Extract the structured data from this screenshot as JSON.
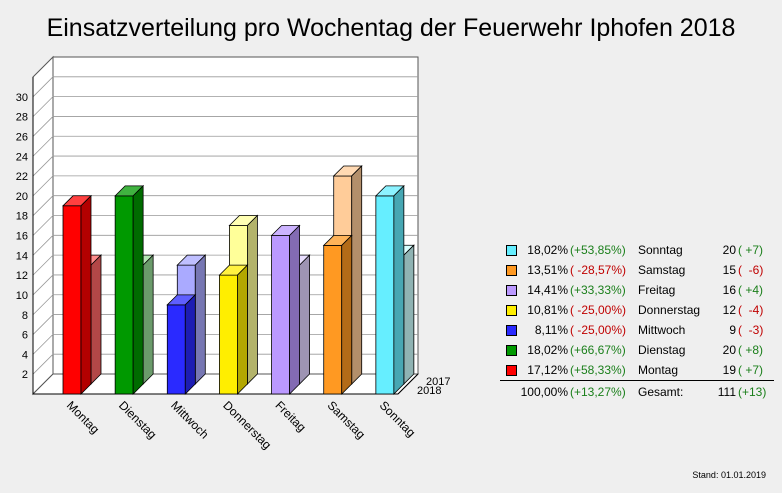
{
  "title": "Einsatzverteilung pro Wochentag der Feuerwehr Iphofen 2018",
  "stand": "Stand: 01.01.2019",
  "chart_data": {
    "type": "bar",
    "title": "Einsatzverteilung pro Wochentag der Feuerwehr Iphofen 2018",
    "categories": [
      "Montag",
      "Dienstag",
      "Mittwoch",
      "Donnerstag",
      "Freitag",
      "Samstag",
      "Sonntag"
    ],
    "series": [
      {
        "name": "2018",
        "values": [
          19,
          20,
          9,
          12,
          16,
          15,
          20
        ]
      },
      {
        "name": "2017",
        "values": [
          12,
          12,
          12,
          16,
          12,
          21,
          13
        ]
      }
    ],
    "ylim": [
      0,
      32
    ],
    "yticks": [
      2,
      4,
      6,
      8,
      10,
      12,
      14,
      16,
      18,
      20,
      22,
      24,
      26,
      28,
      30
    ],
    "grid": true,
    "colors_2018": [
      "#ff0000",
      "#009900",
      "#2a2aff",
      "#ffee00",
      "#bb99ff",
      "#ff9922",
      "#66eeff"
    ],
    "colors_2017": [
      "#ff6666",
      "#99dd99",
      "#aaaaff",
      "#ffff99",
      "#e2d4ff",
      "#ffcc99",
      "#ccffff"
    ]
  },
  "legend": {
    "rows": [
      {
        "color": "#66eeff",
        "pct": "18,02%",
        "change": "(+53,85%)",
        "day": "Sonntag",
        "count": "20",
        "delta": "( +7)"
      },
      {
        "color": "#ff9922",
        "pct": "13,51%",
        "change": "( -28,57%)",
        "day": "Samstag",
        "count": "15",
        "delta": "(  -6)"
      },
      {
        "color": "#bb99ff",
        "pct": "14,41%",
        "change": "(+33,33%)",
        "day": "Freitag",
        "count": "16",
        "delta": "( +4)"
      },
      {
        "color": "#ffee00",
        "pct": "10,81%",
        "change": "( -25,00%)",
        "day": "Donnerstag",
        "count": "12",
        "delta": "(  -4)"
      },
      {
        "color": "#2a2aff",
        "pct": "8,11%",
        "change": "( -25,00%)",
        "day": "Mittwoch",
        "count": "9",
        "delta": "(  -3)"
      },
      {
        "color": "#009900",
        "pct": "18,02%",
        "change": "(+66,67%)",
        "day": "Dienstag",
        "count": "20",
        "delta": "( +8)"
      },
      {
        "color": "#ff0000",
        "pct": "17,12%",
        "change": "(+58,33%)",
        "day": "Montag",
        "count": "19",
        "delta": "( +7)"
      }
    ],
    "total": {
      "pct": "100,00%",
      "change": "(+13,27%)",
      "label": "Gesamt:",
      "count": "111",
      "delta": "(+13)"
    }
  }
}
